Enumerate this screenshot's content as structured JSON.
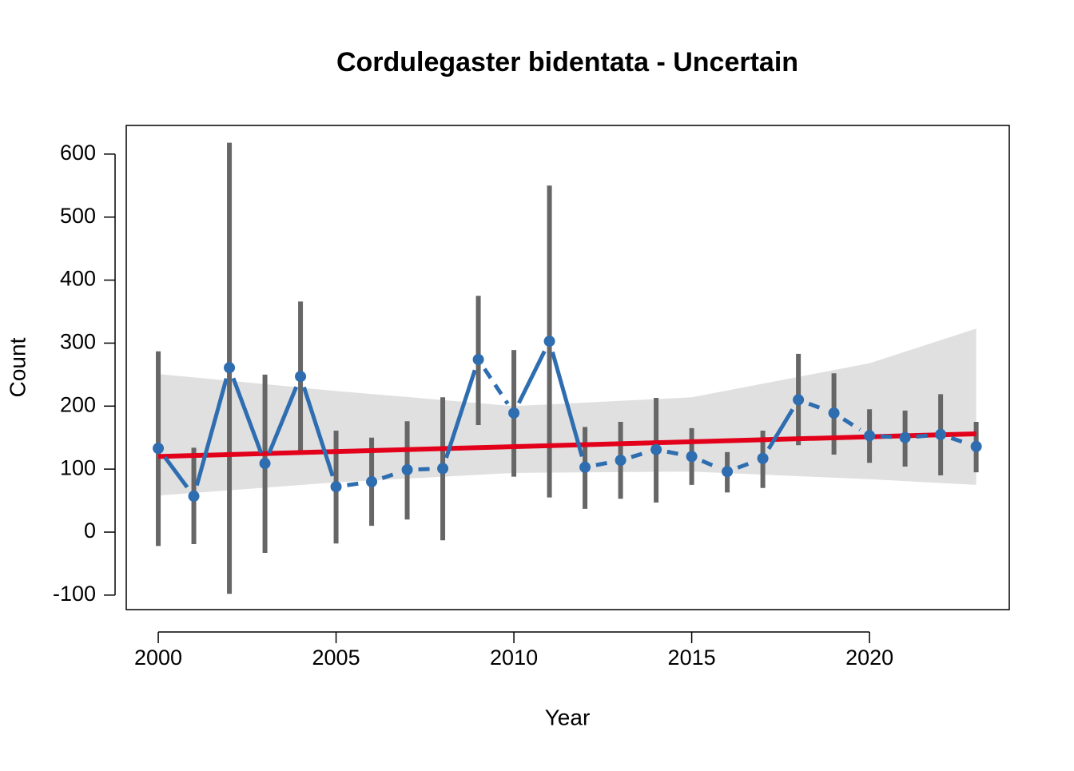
{
  "chart_data": {
    "type": "line",
    "title": "Cordulegaster bidentata - Uncertain",
    "xlabel": "Year",
    "ylabel": "Count",
    "x": [
      2000,
      2001,
      2002,
      2003,
      2004,
      2005,
      2006,
      2007,
      2008,
      2009,
      2010,
      2011,
      2012,
      2013,
      2014,
      2015,
      2016,
      2017,
      2018,
      2019,
      2020,
      2021,
      2022,
      2023
    ],
    "series": [
      {
        "color": "#2e6db0",
        "errorbar_color": "#666666",
        "values": [
          133,
          57,
          261,
          109,
          247,
          72,
          80,
          99,
          101,
          274,
          189,
          303,
          103,
          114,
          131,
          120,
          96,
          117,
          210,
          189,
          153,
          150,
          155,
          136
        ],
        "lower": [
          -22,
          -19,
          -98,
          -33,
          127,
          -18,
          10,
          20,
          -13,
          170,
          88,
          55,
          37,
          53,
          47,
          75,
          63,
          70,
          138,
          123,
          110,
          104,
          90,
          95
        ],
        "upper": [
          287,
          134,
          618,
          250,
          366,
          161,
          150,
          176,
          214,
          375,
          289,
          550,
          167,
          175,
          213,
          165,
          127,
          161,
          283,
          252,
          195,
          193,
          219,
          175
        ],
        "segment_styles": [
          "solid",
          "solid",
          "solid",
          "solid",
          "solid",
          "dashed",
          "dashed",
          "dashed",
          "solid",
          "dashed",
          "solid",
          "solid",
          "dashed",
          "dashed",
          "dashed",
          "dashed",
          "dashed",
          "solid",
          "dashed",
          "dashed",
          "dashed",
          "dashed",
          "dashed"
        ]
      }
    ],
    "trend": {
      "x": [
        2000,
        2023
      ],
      "values": [
        120,
        156
      ],
      "color": "#e3001b"
    },
    "band": {
      "x": [
        2000,
        2005,
        2010,
        2015,
        2020,
        2023
      ],
      "lower": [
        58,
        79,
        94,
        96,
        84,
        75
      ],
      "upper": [
        251,
        224,
        200,
        214,
        268,
        323
      ],
      "color": "#e0e0e0"
    },
    "xlim": [
      1999.1,
      2023.93
    ],
    "xticks": [
      2000,
      2005,
      2010,
      2015,
      2020
    ],
    "ylim": [
      -123,
      645.5
    ],
    "yticks": [
      -100,
      0,
      100,
      200,
      300,
      400,
      500,
      600
    ]
  }
}
